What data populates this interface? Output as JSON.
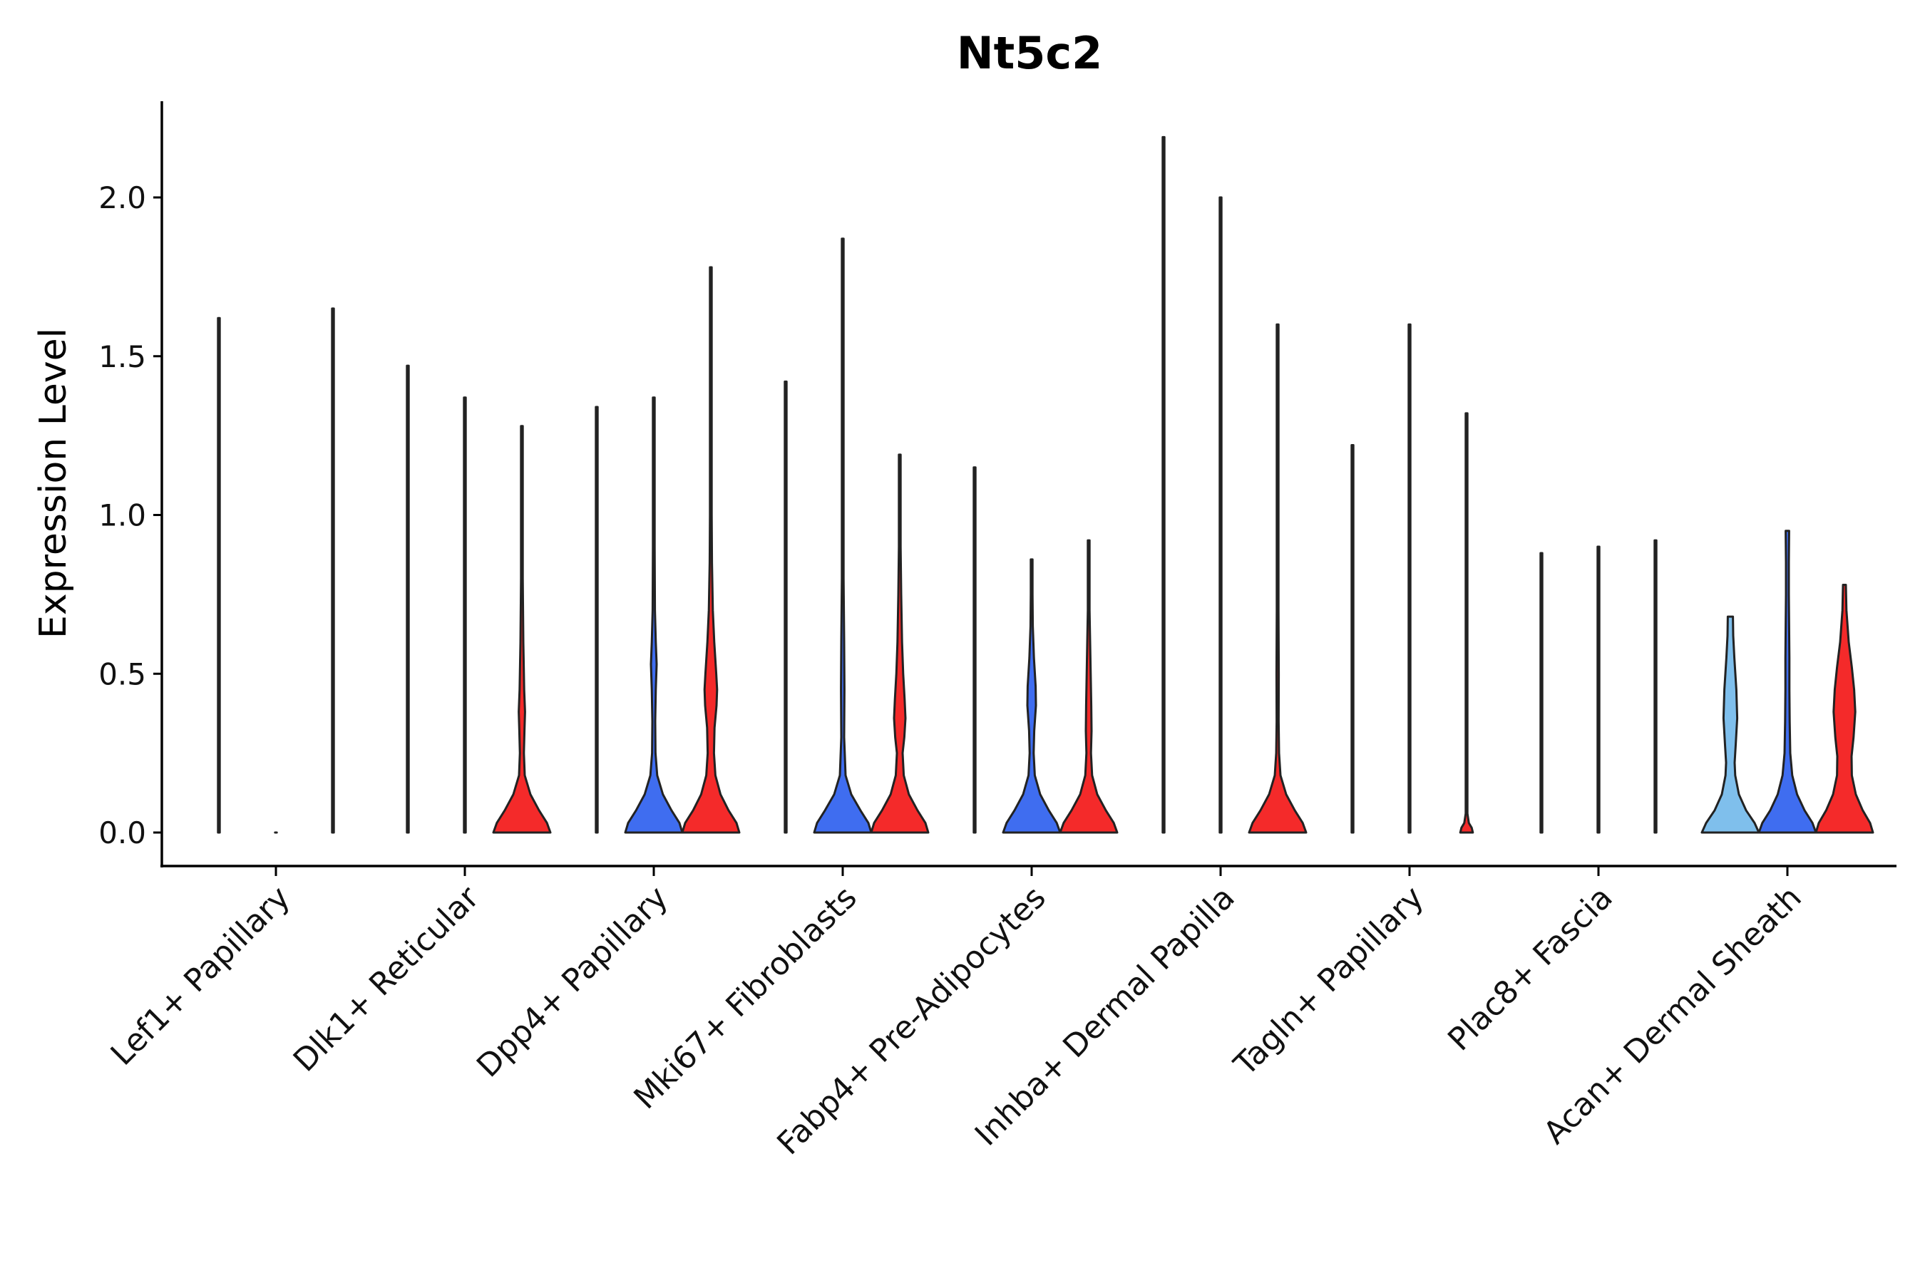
{
  "chart_data": {
    "type": "violin",
    "title": "Nt5c2",
    "xlabel": "",
    "ylabel": "Expression Level",
    "ylim": [
      -0.11,
      2.32
    ],
    "yticks": [
      0.0,
      0.5,
      1.0,
      1.5,
      2.0
    ],
    "ytick_labels": [
      "0.0",
      "0.5",
      "1.0",
      "1.5",
      "2.0"
    ],
    "categories": [
      "Lef1+ Papillary",
      "Dlk1+ Reticular",
      "Dpp4+ Papillary",
      "Mki67+ Fibroblasts",
      "Fabp4+ Pre-Adipocytes",
      "Inhba+ Dermal Papilla",
      "Tagln+ Papillary",
      "Plac8+ Fascia",
      "Acan+ Dermal Sheath"
    ],
    "group_colors": {
      "light-blue": "#7fbfec",
      "blue": "#3f6df0",
      "red": "#f42a2a"
    },
    "violins": [
      {
        "category": 0,
        "slot": 0,
        "color": "light-blue",
        "max": 1.62,
        "profile": [
          [
            0,
            0.03
          ],
          [
            0.03,
            0.004
          ],
          [
            0.1,
            0.002
          ],
          [
            1.62,
            0.001
          ]
        ]
      },
      {
        "category": 0,
        "slot": 1,
        "color": "blue",
        "max": 0,
        "profile": [
          [
            0,
            0.01
          ]
        ]
      },
      {
        "category": 0,
        "slot": 2,
        "color": "red",
        "max": 1.65,
        "profile": [
          [
            0,
            0.03
          ],
          [
            0.03,
            0.004
          ],
          [
            0.1,
            0.002
          ],
          [
            1.65,
            0.001
          ]
        ]
      },
      {
        "category": 1,
        "slot": 0,
        "color": "light-blue",
        "max": 1.47,
        "profile": [
          [
            0,
            0.03
          ],
          [
            0.03,
            0.004
          ],
          [
            0.1,
            0.002
          ],
          [
            1.47,
            0.001
          ]
        ]
      },
      {
        "category": 1,
        "slot": 1,
        "color": "blue",
        "max": 1.37,
        "profile": [
          [
            0,
            0.03
          ],
          [
            0.03,
            0.004
          ],
          [
            0.1,
            0.002
          ],
          [
            1.37,
            0.001
          ]
        ]
      },
      {
        "category": 1,
        "slot": 2,
        "color": "red",
        "max": 1.28,
        "profile": [
          [
            0,
            1
          ],
          [
            0.03,
            0.88
          ],
          [
            0.07,
            0.6
          ],
          [
            0.12,
            0.3
          ],
          [
            0.18,
            0.1
          ],
          [
            0.25,
            0.07
          ],
          [
            0.32,
            0.09
          ],
          [
            0.38,
            0.11
          ],
          [
            0.45,
            0.08
          ],
          [
            0.6,
            0.05
          ],
          [
            0.8,
            0.03
          ],
          [
            1.0,
            0.015
          ],
          [
            1.28,
            0.004
          ]
        ]
      },
      {
        "category": 2,
        "slot": 0,
        "color": "light-blue",
        "max": 1.34,
        "profile": [
          [
            0,
            0.03
          ],
          [
            0.03,
            0.004
          ],
          [
            0.1,
            0.002
          ],
          [
            1.34,
            0.001
          ]
        ]
      },
      {
        "category": 2,
        "slot": 1,
        "color": "blue",
        "max": 1.37,
        "profile": [
          [
            0,
            1
          ],
          [
            0.03,
            0.9
          ],
          [
            0.07,
            0.62
          ],
          [
            0.12,
            0.32
          ],
          [
            0.18,
            0.12
          ],
          [
            0.25,
            0.06
          ],
          [
            0.35,
            0.05
          ],
          [
            0.45,
            0.07
          ],
          [
            0.53,
            0.1
          ],
          [
            0.6,
            0.07
          ],
          [
            0.7,
            0.04
          ],
          [
            0.9,
            0.02
          ],
          [
            1.1,
            0.012
          ],
          [
            1.37,
            0.004
          ]
        ]
      },
      {
        "category": 2,
        "slot": 2,
        "color": "red",
        "max": 1.78,
        "profile": [
          [
            0,
            1
          ],
          [
            0.03,
            0.9
          ],
          [
            0.07,
            0.62
          ],
          [
            0.12,
            0.34
          ],
          [
            0.18,
            0.16
          ],
          [
            0.25,
            0.11
          ],
          [
            0.33,
            0.13
          ],
          [
            0.4,
            0.2
          ],
          [
            0.45,
            0.22
          ],
          [
            0.5,
            0.19
          ],
          [
            0.6,
            0.12
          ],
          [
            0.7,
            0.07
          ],
          [
            0.85,
            0.04
          ],
          [
            1.0,
            0.02
          ],
          [
            1.2,
            0.012
          ],
          [
            1.5,
            0.006
          ],
          [
            1.78,
            0.003
          ]
        ]
      },
      {
        "category": 3,
        "slot": 0,
        "color": "light-blue",
        "max": 1.42,
        "profile": [
          [
            0,
            0.03
          ],
          [
            0.03,
            0.004
          ],
          [
            0.1,
            0.002
          ],
          [
            1.42,
            0.001
          ]
        ]
      },
      {
        "category": 3,
        "slot": 1,
        "color": "blue",
        "max": 1.87,
        "profile": [
          [
            0,
            1
          ],
          [
            0.03,
            0.9
          ],
          [
            0.07,
            0.62
          ],
          [
            0.12,
            0.3
          ],
          [
            0.18,
            0.1
          ],
          [
            0.3,
            0.05
          ],
          [
            0.45,
            0.06
          ],
          [
            0.6,
            0.05
          ],
          [
            0.8,
            0.03
          ],
          [
            1.0,
            0.015
          ],
          [
            1.4,
            0.006
          ],
          [
            1.87,
            0.002
          ]
        ]
      },
      {
        "category": 3,
        "slot": 2,
        "color": "red",
        "max": 1.19,
        "profile": [
          [
            0,
            1
          ],
          [
            0.03,
            0.9
          ],
          [
            0.07,
            0.62
          ],
          [
            0.12,
            0.32
          ],
          [
            0.18,
            0.14
          ],
          [
            0.25,
            0.1
          ],
          [
            0.3,
            0.16
          ],
          [
            0.36,
            0.2
          ],
          [
            0.42,
            0.17
          ],
          [
            0.5,
            0.12
          ],
          [
            0.6,
            0.08
          ],
          [
            0.75,
            0.05
          ],
          [
            0.9,
            0.03
          ],
          [
            1.19,
            0.006
          ]
        ]
      },
      {
        "category": 4,
        "slot": 0,
        "color": "light-blue",
        "max": 1.15,
        "profile": [
          [
            0,
            0.03
          ],
          [
            0.03,
            0.004
          ],
          [
            0.1,
            0.002
          ],
          [
            1.15,
            0.001
          ]
        ]
      },
      {
        "category": 4,
        "slot": 1,
        "color": "blue",
        "max": 0.86,
        "profile": [
          [
            0,
            1
          ],
          [
            0.03,
            0.88
          ],
          [
            0.07,
            0.6
          ],
          [
            0.12,
            0.3
          ],
          [
            0.18,
            0.11
          ],
          [
            0.25,
            0.07
          ],
          [
            0.32,
            0.09
          ],
          [
            0.4,
            0.15
          ],
          [
            0.46,
            0.14
          ],
          [
            0.55,
            0.08
          ],
          [
            0.65,
            0.04
          ],
          [
            0.75,
            0.02
          ],
          [
            0.86,
            0.006
          ]
        ]
      },
      {
        "category": 4,
        "slot": 2,
        "color": "red",
        "max": 0.92,
        "profile": [
          [
            0,
            1
          ],
          [
            0.03,
            0.88
          ],
          [
            0.07,
            0.6
          ],
          [
            0.12,
            0.3
          ],
          [
            0.18,
            0.12
          ],
          [
            0.25,
            0.08
          ],
          [
            0.32,
            0.1
          ],
          [
            0.4,
            0.09
          ],
          [
            0.5,
            0.07
          ],
          [
            0.6,
            0.05
          ],
          [
            0.7,
            0.03
          ],
          [
            0.8,
            0.02
          ],
          [
            0.92,
            0.006
          ]
        ]
      },
      {
        "category": 5,
        "slot": 0,
        "color": "light-blue",
        "max": 2.19,
        "profile": [
          [
            0,
            0.03
          ],
          [
            0.03,
            0.004
          ],
          [
            0.1,
            0.002
          ],
          [
            2.19,
            0.001
          ]
        ]
      },
      {
        "category": 5,
        "slot": 1,
        "color": "blue",
        "max": 2.0,
        "profile": [
          [
            0,
            0.03
          ],
          [
            0.03,
            0.004
          ],
          [
            0.1,
            0.002
          ],
          [
            2.0,
            0.001
          ]
        ]
      },
      {
        "category": 5,
        "slot": 2,
        "color": "red",
        "max": 1.6,
        "profile": [
          [
            0,
            1
          ],
          [
            0.03,
            0.88
          ],
          [
            0.07,
            0.6
          ],
          [
            0.12,
            0.3
          ],
          [
            0.18,
            0.1
          ],
          [
            0.25,
            0.05
          ],
          [
            0.35,
            0.035
          ],
          [
            0.5,
            0.04
          ],
          [
            0.6,
            0.035
          ],
          [
            0.7,
            0.03
          ],
          [
            0.85,
            0.02
          ],
          [
            1.0,
            0.012
          ],
          [
            1.3,
            0.006
          ],
          [
            1.6,
            0.002
          ]
        ]
      },
      {
        "category": 6,
        "slot": 0,
        "color": "light-blue",
        "max": 1.22,
        "profile": [
          [
            0,
            0.03
          ],
          [
            0.03,
            0.004
          ],
          [
            0.1,
            0.002
          ],
          [
            1.22,
            0.001
          ]
        ]
      },
      {
        "category": 6,
        "slot": 1,
        "color": "blue",
        "max": 1.6,
        "profile": [
          [
            0,
            0.03
          ],
          [
            0.03,
            0.004
          ],
          [
            0.1,
            0.002
          ],
          [
            1.6,
            0.001
          ]
        ]
      },
      {
        "category": 6,
        "slot": 2,
        "color": "red",
        "max": 1.32,
        "profile": [
          [
            0,
            0.22
          ],
          [
            0.015,
            0.18
          ],
          [
            0.03,
            0.08
          ],
          [
            0.06,
            0.02
          ],
          [
            0.1,
            0.004
          ],
          [
            0.4,
            0.003
          ],
          [
            1.32,
            0.001
          ]
        ]
      },
      {
        "category": 7,
        "slot": 0,
        "color": "light-blue",
        "max": 0.88,
        "profile": [
          [
            0,
            0.03
          ],
          [
            0.03,
            0.004
          ],
          [
            0.1,
            0.002
          ],
          [
            0.88,
            0.001
          ]
        ]
      },
      {
        "category": 7,
        "slot": 1,
        "color": "blue",
        "max": 0.9,
        "profile": [
          [
            0,
            0.03
          ],
          [
            0.03,
            0.004
          ],
          [
            0.1,
            0.002
          ],
          [
            0.9,
            0.001
          ]
        ]
      },
      {
        "category": 7,
        "slot": 2,
        "color": "red",
        "max": 0.92,
        "profile": [
          [
            0,
            0.03
          ],
          [
            0.03,
            0.004
          ],
          [
            0.1,
            0.002
          ],
          [
            0.92,
            0.001
          ]
        ]
      },
      {
        "category": 8,
        "slot": 0,
        "color": "light-blue",
        "max": 0.68,
        "profile": [
          [
            0,
            1
          ],
          [
            0.03,
            0.85
          ],
          [
            0.07,
            0.55
          ],
          [
            0.12,
            0.3
          ],
          [
            0.18,
            0.17
          ],
          [
            0.22,
            0.15
          ],
          [
            0.28,
            0.19
          ],
          [
            0.36,
            0.24
          ],
          [
            0.45,
            0.21
          ],
          [
            0.55,
            0.14
          ],
          [
            0.62,
            0.1
          ],
          [
            0.68,
            0.09
          ]
        ]
      },
      {
        "category": 8,
        "slot": 1,
        "color": "blue",
        "max": 0.95,
        "profile": [
          [
            0,
            1
          ],
          [
            0.03,
            0.88
          ],
          [
            0.07,
            0.6
          ],
          [
            0.12,
            0.34
          ],
          [
            0.18,
            0.17
          ],
          [
            0.25,
            0.1
          ],
          [
            0.35,
            0.08
          ],
          [
            0.45,
            0.07
          ],
          [
            0.55,
            0.07
          ],
          [
            0.65,
            0.06
          ],
          [
            0.75,
            0.05
          ],
          [
            0.85,
            0.05
          ],
          [
            0.95,
            0.06
          ]
        ]
      },
      {
        "category": 8,
        "slot": 2,
        "color": "red",
        "max": 0.78,
        "profile": [
          [
            0,
            1
          ],
          [
            0.03,
            0.9
          ],
          [
            0.07,
            0.64
          ],
          [
            0.12,
            0.4
          ],
          [
            0.18,
            0.26
          ],
          [
            0.24,
            0.25
          ],
          [
            0.3,
            0.32
          ],
          [
            0.38,
            0.38
          ],
          [
            0.45,
            0.34
          ],
          [
            0.52,
            0.26
          ],
          [
            0.6,
            0.15
          ],
          [
            0.7,
            0.07
          ],
          [
            0.78,
            0.05
          ]
        ]
      }
    ]
  }
}
